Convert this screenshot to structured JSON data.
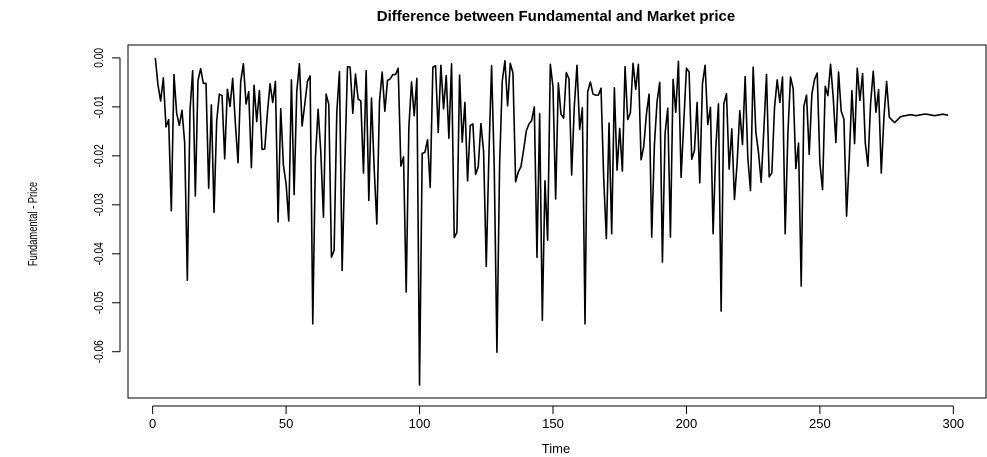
{
  "chart_data": {
    "type": "line",
    "title": "Difference between Fundamental and Market price",
    "xlabel": "Time",
    "ylabel": "Fundamental - Price",
    "xlim": [
      1,
      300
    ],
    "ylim": [
      -0.067,
      0.0
    ],
    "x_ticks": [
      0,
      50,
      100,
      150,
      200,
      250,
      300
    ],
    "y_ticks": [
      0.0,
      -0.01,
      -0.02,
      -0.03,
      -0.04,
      -0.05,
      -0.06
    ],
    "x_tick_labels": [
      "0",
      "50",
      "100",
      "150",
      "200",
      "250",
      "300"
    ],
    "y_tick_labels": [
      "0.00",
      "-0.01",
      "-0.02",
      "-0.03",
      "-0.04",
      "-0.05",
      "-0.06"
    ],
    "grid": false,
    "line_color": "#000000",
    "series": [
      {
        "values": [
          0.0,
          -0.0055,
          -0.0088,
          -0.0041,
          -0.0141,
          -0.0126,
          -0.0312,
          -0.0034,
          -0.0113,
          -0.0138,
          -0.0107,
          -0.0173,
          -0.0454,
          -0.0107,
          -0.0026,
          -0.0282,
          -0.0046,
          -0.0022,
          -0.0052,
          -0.0052,
          -0.0266,
          -0.0096,
          -0.0315,
          -0.0129,
          -0.0074,
          -0.0077,
          -0.0206,
          -0.0064,
          -0.0099,
          -0.0042,
          -0.0134,
          -0.0214,
          -0.0048,
          -0.0012,
          -0.0094,
          -0.0069,
          -0.0224,
          -0.0056,
          -0.013,
          -0.0067,
          -0.0187,
          -0.0186,
          -0.0112,
          -0.0053,
          -0.0091,
          -0.0048,
          -0.0335,
          -0.0104,
          -0.0219,
          -0.0257,
          -0.0333,
          -0.0045,
          -0.0279,
          -0.0069,
          -0.0012,
          -0.0139,
          -0.0095,
          -0.0048,
          -0.0037,
          -0.0543,
          -0.0204,
          -0.0105,
          -0.0192,
          -0.0325,
          -0.0074,
          -0.0095,
          -0.0407,
          -0.0393,
          -0.0111,
          -0.0028,
          -0.0434,
          -0.0218,
          -0.0018,
          -0.0019,
          -0.0113,
          -0.0033,
          -0.0084,
          -0.0088,
          -0.0235,
          -0.0026,
          -0.0291,
          -0.0082,
          -0.0225,
          -0.0339,
          -0.0089,
          -0.0029,
          -0.0109,
          -0.0046,
          -0.0043,
          -0.0034,
          -0.0034,
          -0.0021,
          -0.0221,
          -0.0202,
          -0.0478,
          -0.0142,
          -0.0049,
          -0.0118,
          -0.0042,
          -0.0668,
          -0.0195,
          -0.0193,
          -0.0167,
          -0.0264,
          -0.0019,
          -0.0016,
          -0.0152,
          -0.0015,
          -0.0104,
          -0.0036,
          -0.0164,
          -0.0012,
          -0.0367,
          -0.0356,
          -0.0035,
          -0.0172,
          -0.0091,
          -0.0251,
          -0.0138,
          -0.0135,
          -0.0238,
          -0.0222,
          -0.0134,
          -0.0191,
          -0.0426,
          -0.0196,
          -0.0016,
          -0.0226,
          -0.0601,
          -0.0219,
          -0.0047,
          -0.0006,
          -0.0098,
          -0.0011,
          -0.0031,
          -0.0253,
          -0.0233,
          -0.0222,
          -0.0188,
          -0.0149,
          -0.0135,
          -0.0128,
          -0.01,
          -0.0407,
          -0.0114,
          -0.0536,
          -0.0251,
          -0.0372,
          -0.0013,
          -0.0059,
          -0.0288,
          -0.0051,
          -0.0115,
          -0.0123,
          -0.003,
          -0.0043,
          -0.0239,
          -0.0098,
          -0.0015,
          -0.0146,
          -0.0102,
          -0.0543,
          -0.0069,
          -0.0049,
          -0.0074,
          -0.0076,
          -0.0076,
          -0.0062,
          -0.0246,
          -0.0369,
          -0.0133,
          -0.0359,
          -0.0061,
          -0.0229,
          -0.0144,
          -0.0231,
          -0.0018,
          -0.0126,
          -0.0112,
          -0.0011,
          -0.0064,
          -0.0013,
          -0.0208,
          -0.0181,
          -0.0115,
          -0.0074,
          -0.0366,
          -0.0178,
          -0.0089,
          -0.005,
          -0.0417,
          -0.0154,
          -0.0103,
          -0.0366,
          -0.0044,
          -0.0111,
          -0.0007,
          -0.0244,
          -0.0132,
          -0.0021,
          -0.0029,
          -0.0207,
          -0.0189,
          -0.0091,
          -0.0255,
          -0.0053,
          -0.0015,
          -0.0136,
          -0.0101,
          -0.0359,
          -0.0184,
          -0.0094,
          -0.0517,
          -0.0094,
          -0.0073,
          -0.0227,
          -0.0145,
          -0.0289,
          -0.0214,
          -0.0108,
          -0.0177,
          -0.0038,
          -0.0204,
          -0.0271,
          -0.0019,
          -0.0151,
          -0.0193,
          -0.0254,
          -0.0147,
          -0.0034,
          -0.0243,
          -0.0235,
          -0.0102,
          -0.0045,
          -0.0091,
          -0.0039,
          -0.0359,
          -0.0156,
          -0.0039,
          -0.0063,
          -0.0226,
          -0.0174,
          -0.0466,
          -0.0099,
          -0.0076,
          -0.0197,
          -0.0074,
          -0.0044,
          -0.0031,
          -0.0215,
          -0.0269,
          -0.0058,
          -0.0077,
          -0.0013,
          -0.0081,
          -0.0173,
          -0.0029,
          -0.0109,
          -0.0125,
          -0.0323,
          -0.0207,
          -0.0067,
          -0.0175,
          -0.0021,
          -0.0087,
          -0.0032,
          -0.0173,
          -0.0221,
          -0.0093,
          -0.0027,
          -0.0111,
          -0.0065,
          -0.0235,
          -0.0121,
          -0.0048,
          -0.0121,
          -0.0127,
          -0.0132,
          -0.0127,
          -0.0121,
          -0.0119,
          -0.0118,
          -0.0117,
          -0.0116,
          -0.0117,
          -0.0118,
          -0.0117,
          -0.0116,
          -0.0115,
          -0.0115,
          -0.0116,
          -0.0117,
          -0.0118,
          -0.0117,
          -0.0116,
          -0.0115,
          -0.0116,
          -0.0117
        ]
      }
    ]
  }
}
